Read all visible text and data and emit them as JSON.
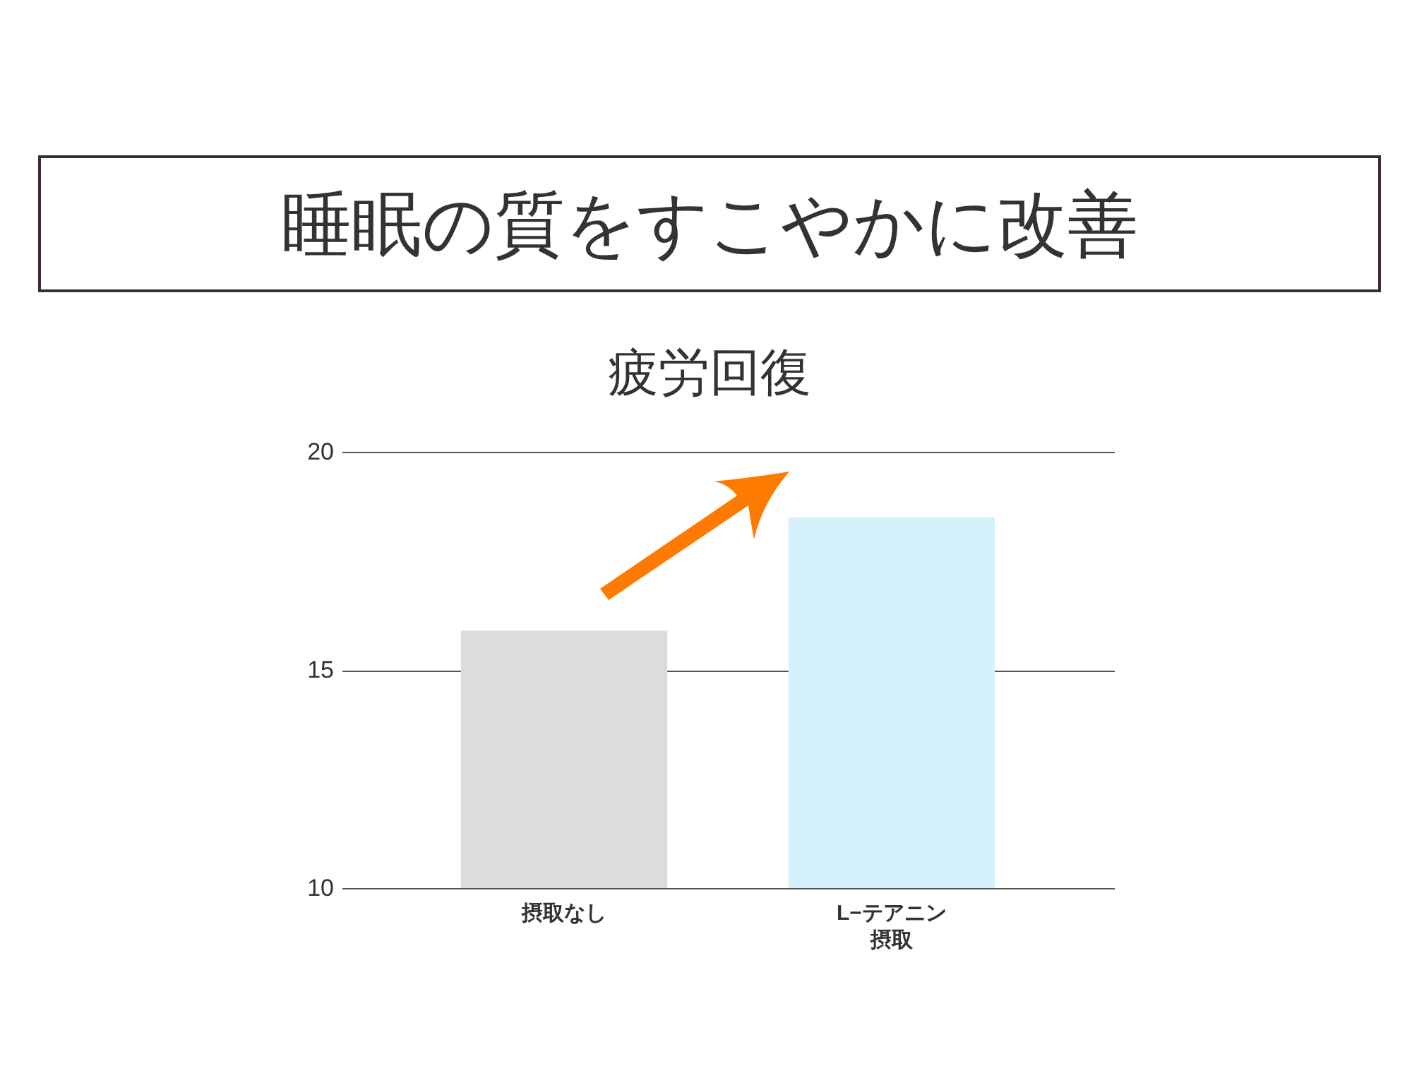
{
  "chart_data": {
    "type": "bar",
    "title": "睡眠の質をすこやかに改善",
    "subtitle": "疲労回復",
    "categories": [
      "摂取なし",
      "L−テアニン摂取"
    ],
    "values": [
      15.9,
      18.5
    ],
    "colors": [
      "#dcdcdc",
      "#d4f1fc"
    ],
    "ylim": [
      10,
      20
    ],
    "yticks": [
      10,
      15,
      20
    ],
    "grid": "y"
  }
}
